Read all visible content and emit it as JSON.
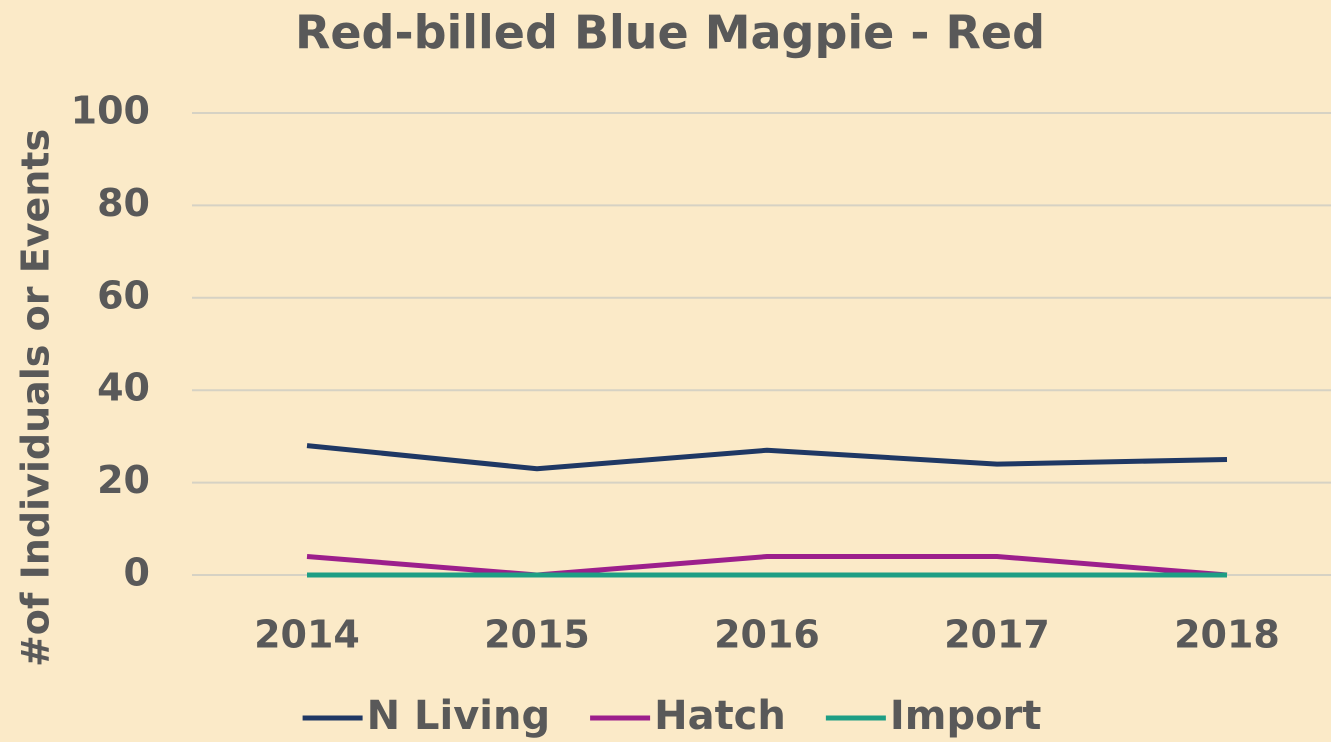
{
  "chart_data": {
    "type": "line",
    "title": "Red-billed Blue Magpie - Red",
    "y_label": "#of Individuals or Events",
    "categories": [
      "2014",
      "2015",
      "2016",
      "2017",
      "2018"
    ],
    "series": [
      {
        "name": "N Living",
        "color": "#1f3864",
        "values": [
          28,
          23,
          27,
          24,
          25
        ]
      },
      {
        "name": "Hatch",
        "color": "#9c1f8c",
        "values": [
          4,
          0,
          4,
          4,
          0
        ]
      },
      {
        "name": "Import",
        "color": "#1e9e84",
        "values": [
          0,
          0,
          0,
          0,
          0
        ]
      }
    ],
    "ylim": [
      0,
      100
    ],
    "yticks": [
      0,
      20,
      40,
      60,
      80,
      100
    ],
    "grid": true,
    "legend": "bottom"
  }
}
